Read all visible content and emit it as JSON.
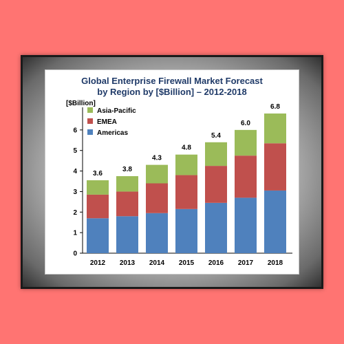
{
  "chart_data": {
    "type": "bar",
    "stacked": true,
    "title_line1": "Global Enterprise Firewall Market Forecast",
    "title_line2": "by Region by [$Billion] – 2012-2018",
    "unit_label": "[$Billion]",
    "categories": [
      "2012",
      "2013",
      "2014",
      "2015",
      "2016",
      "2017",
      "2018"
    ],
    "series": [
      {
        "name": "Americas",
        "color": "#4f81bd",
        "values": [
          1.7,
          1.8,
          1.95,
          2.15,
          2.45,
          2.7,
          3.05
        ]
      },
      {
        "name": "EMEA",
        "color": "#c0504d",
        "values": [
          1.15,
          1.2,
          1.45,
          1.65,
          1.8,
          2.05,
          2.3
        ]
      },
      {
        "name": "Asia-Pacific",
        "color": "#9bbb59",
        "values": [
          0.7,
          0.75,
          0.9,
          1.0,
          1.15,
          1.25,
          1.45
        ]
      }
    ],
    "totals": [
      "3.6",
      "3.8",
      "4.3",
      "4.8",
      "5.4",
      "6.0",
      "6.8"
    ],
    "legend_order": [
      "Asia-Pacific",
      "EMEA",
      "Americas"
    ],
    "legend_position": "top-left",
    "ylim": [
      0,
      7
    ],
    "yticks": [
      "0",
      "1",
      "2",
      "3",
      "4",
      "5",
      "6"
    ],
    "grid": false
  }
}
